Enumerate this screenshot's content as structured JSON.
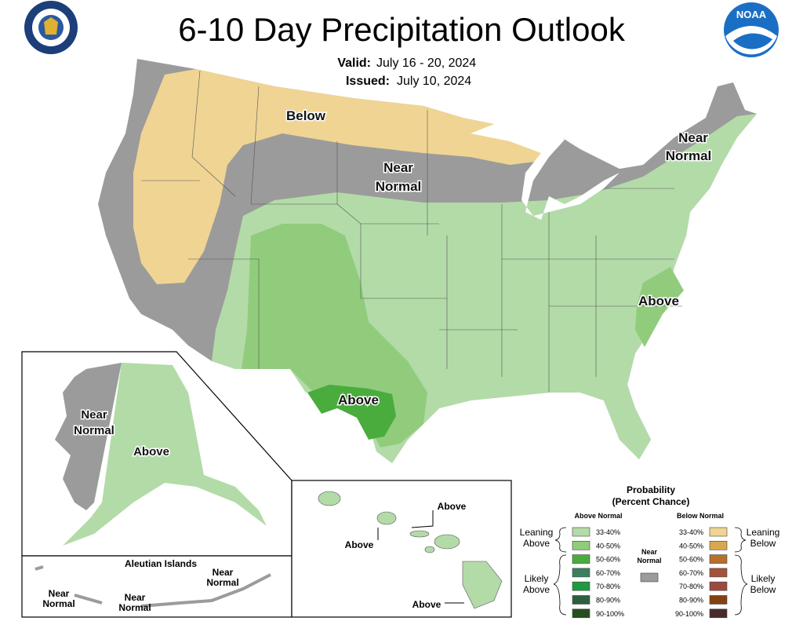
{
  "header": {
    "title": "6-10 Day Precipitation Outlook",
    "valid_label": "Valid:",
    "valid": "July 16 - 20, 2024",
    "issued_label": "Issued:",
    "issued": "July 10, 2024",
    "logo": "NOAA"
  },
  "conus": {
    "labels": [
      {
        "lines": [
          "Below"
        ]
      },
      {
        "lines": [
          "Near",
          "Normal"
        ]
      },
      {
        "lines": [
          "Near",
          "Normal"
        ]
      },
      {
        "lines": [
          "Above"
        ]
      },
      {
        "lines": [
          "Above"
        ]
      }
    ]
  },
  "alaska": {
    "labels": [
      {
        "lines": [
          "Near",
          "Normal"
        ]
      },
      {
        "lines": [
          "Above"
        ]
      }
    ]
  },
  "aleutians": {
    "title": "Aleutian Islands",
    "labels": [
      {
        "lines": [
          "Near",
          "Normal"
        ]
      },
      {
        "lines": [
          "Near",
          "Normal"
        ]
      },
      {
        "lines": [
          "Near",
          "Normal"
        ]
      }
    ]
  },
  "hawaii": {
    "labels": [
      {
        "lines": [
          "Above"
        ]
      },
      {
        "lines": [
          "Above"
        ]
      },
      {
        "lines": [
          "Above"
        ]
      }
    ]
  },
  "legend": {
    "title": [
      "Probability",
      "(Percent Chance)"
    ],
    "above_normal": {
      "title": "Above Normal",
      "groups": [
        {
          "lines": [
            "Leaning",
            "Above"
          ]
        },
        {
          "lines": [
            "Likely",
            "Above"
          ]
        }
      ],
      "items": [
        {
          "label": "33-40%",
          "color": "#b3dba8"
        },
        {
          "label": "40-50%",
          "color": "#90cc7c"
        },
        {
          "label": "50-60%",
          "color": "#4aac3c"
        },
        {
          "label": "60-70%",
          "color": "#3a8060"
        },
        {
          "label": "70-80%",
          "color": "#1e9a40"
        },
        {
          "label": "80-90%",
          "color": "#2d5e3e"
        },
        {
          "label": "90-100%",
          "color": "#274e1e"
        }
      ]
    },
    "near_normal": {
      "lines": [
        "Near",
        "Normal"
      ],
      "color": "#9b9b9b"
    },
    "below_normal": {
      "title": "Below Normal",
      "groups": [
        {
          "lines": [
            "Leaning",
            "Below"
          ]
        },
        {
          "lines": [
            "Likely",
            "Below"
          ]
        }
      ],
      "items": [
        {
          "label": "33-40%",
          "color": "#f0d493"
        },
        {
          "label": "40-50%",
          "color": "#d8a850"
        },
        {
          "label": "50-60%",
          "color": "#b86e30"
        },
        {
          "label": "60-70%",
          "color": "#a4533a"
        },
        {
          "label": "70-80%",
          "color": "#9c4a40"
        },
        {
          "label": "80-90%",
          "color": "#844213"
        },
        {
          "label": "90-100%",
          "color": "#4a2a2a"
        }
      ]
    }
  }
}
